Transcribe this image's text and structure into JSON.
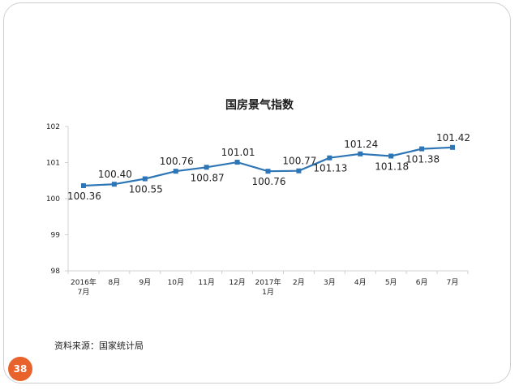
{
  "page": {
    "number": "38",
    "source": "资料来源：国家统计局"
  },
  "colors": {
    "series": "#2e75b6",
    "badge": "#e8632b",
    "axis": "#d0d0d0"
  },
  "chart_data": {
    "type": "line",
    "title": "国房景气指数",
    "xlabel": "",
    "ylabel": "",
    "categories": [
      [
        "2016年",
        "7月"
      ],
      [
        "8月"
      ],
      [
        "9月"
      ],
      [
        "10月"
      ],
      [
        "11月"
      ],
      [
        "12月"
      ],
      [
        "2017年",
        "1月"
      ],
      [
        "2月"
      ],
      [
        "3月"
      ],
      [
        "4月"
      ],
      [
        "5月"
      ],
      [
        "6月"
      ],
      [
        "7月"
      ]
    ],
    "values": [
      100.36,
      100.4,
      100.55,
      100.76,
      100.87,
      101.01,
      100.76,
      100.77,
      101.13,
      101.24,
      101.18,
      101.38,
      101.42
    ],
    "data_labels": [
      "100.36",
      "100.40",
      "100.55",
      "100.76",
      "100.87",
      "101.01",
      "100.76",
      "100.77",
      "101.13",
      "101.24",
      "101.18",
      "101.38",
      "101.42"
    ],
    "label_positions": [
      "below",
      "above",
      "below",
      "above",
      "below",
      "above",
      "below",
      "above",
      "below",
      "above",
      "below",
      "below",
      "above"
    ],
    "ylim": [
      98,
      102
    ],
    "yticks": [
      98,
      99,
      100,
      101,
      102
    ],
    "grid": false,
    "legend": "none"
  }
}
